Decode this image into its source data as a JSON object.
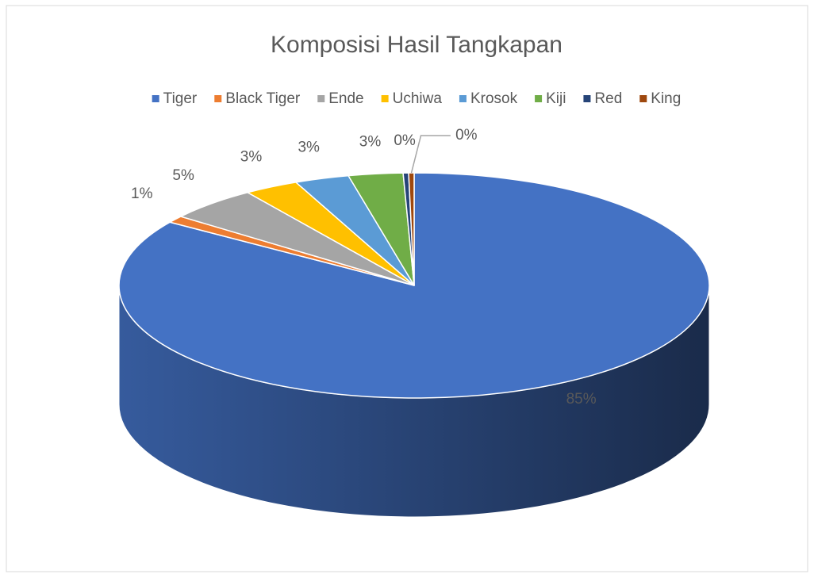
{
  "chart_data": {
    "type": "pie",
    "title": "Komposisi Hasil Tangkapan",
    "categories": [
      "Tiger",
      "Black Tiger",
      "Ende",
      "Uchiwa",
      "Krosok",
      "Kiji",
      "Red",
      "King"
    ],
    "values": [
      85,
      1,
      5,
      3,
      3,
      3,
      0.3,
      0.3
    ],
    "value_labels": [
      "85%",
      "1%",
      "5%",
      "3%",
      "3%",
      "3%",
      "0%",
      "0%"
    ],
    "colors": [
      "#4472c4",
      "#ed7d31",
      "#a5a5a5",
      "#ffc000",
      "#5b9bd5",
      "#70ad47",
      "#264478",
      "#9e480e"
    ],
    "legend": "top",
    "three_d": true
  }
}
